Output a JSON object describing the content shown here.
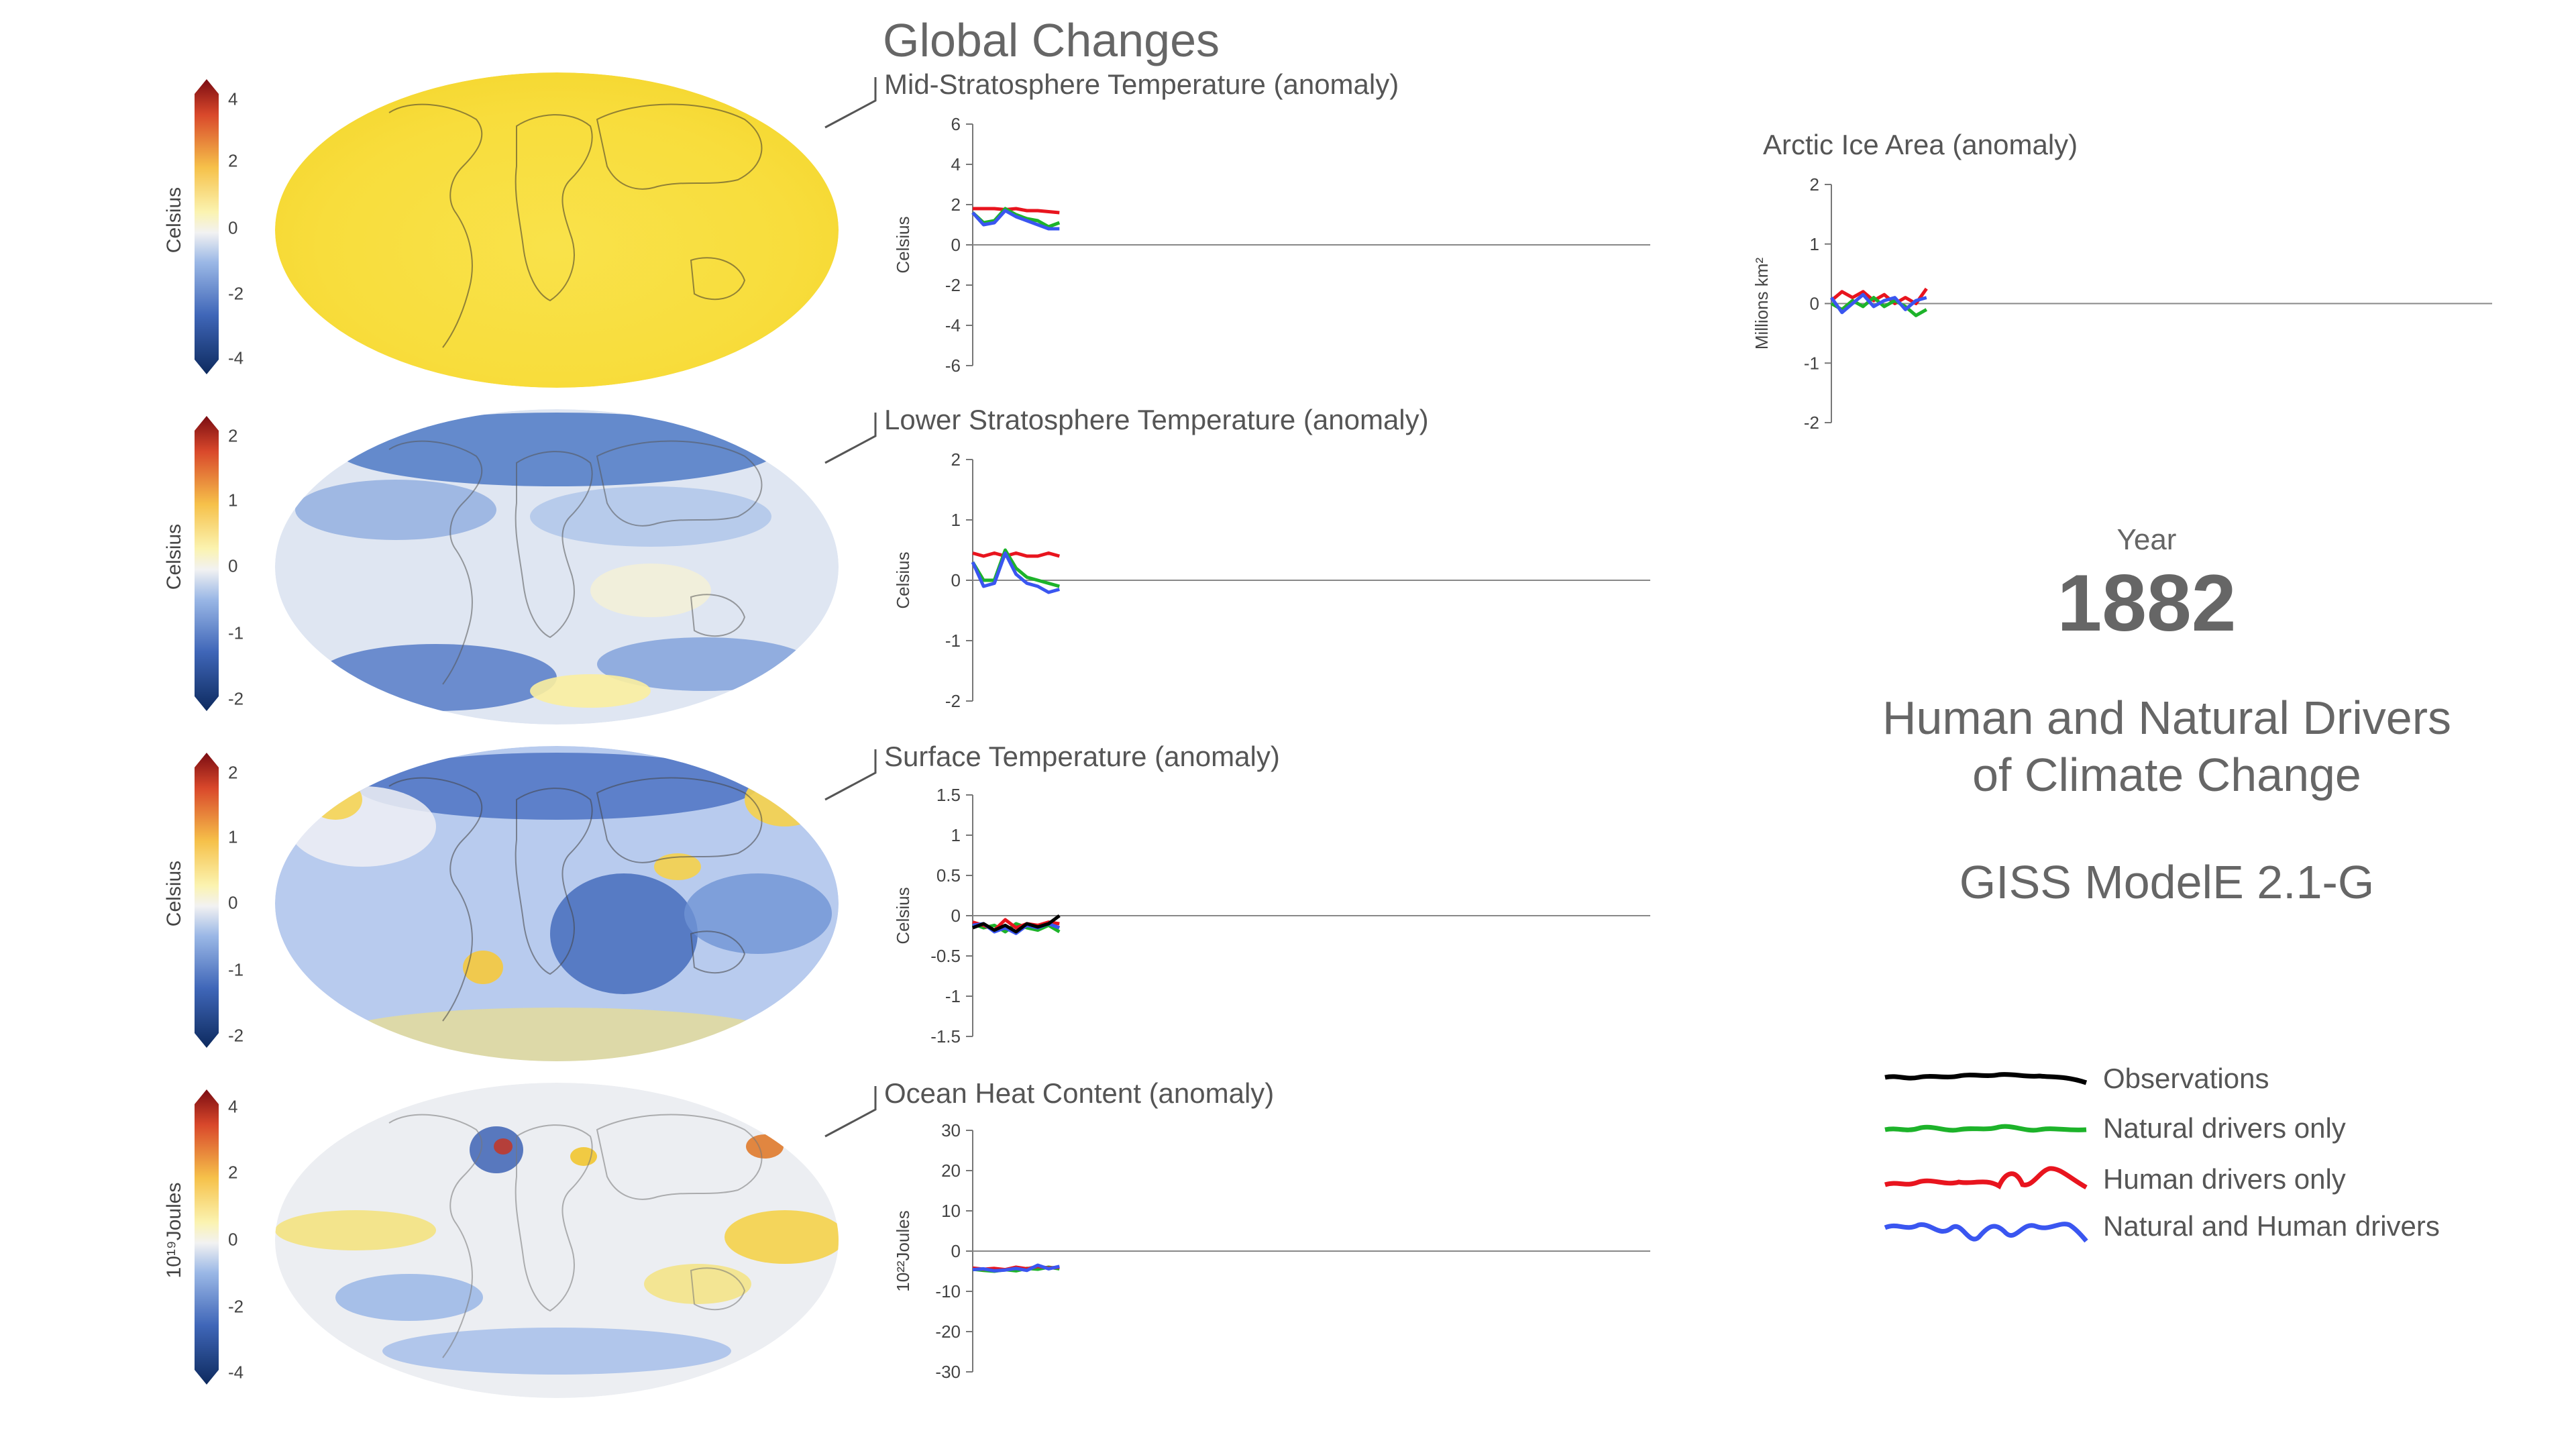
{
  "header": {
    "title": "Global Changes"
  },
  "colorbars": [
    {
      "label": "Celsius",
      "ticks": [
        "4",
        "2",
        "0",
        "-2",
        "-4"
      ]
    },
    {
      "label": "Celsius",
      "ticks": [
        "2",
        "1",
        "0",
        "-1",
        "-2"
      ]
    },
    {
      "label": "Celsius",
      "ticks": [
        "2",
        "1",
        "0",
        "-1",
        "-2"
      ]
    },
    {
      "label": "10¹⁹Joules",
      "ticks": [
        "4",
        "2",
        "0",
        "-2",
        "-4"
      ]
    }
  ],
  "maps": [
    {
      "name": "Mid-Stratosphere Temperature anomaly map",
      "base_color": "#f8dd3c"
    },
    {
      "name": "Lower Stratosphere Temperature anomaly map",
      "base_color": "#aec4ea"
    },
    {
      "name": "Surface Temperature anomaly map",
      "base_color": "#8fb0e4"
    },
    {
      "name": "Ocean Heat Content anomaly map",
      "base_color": "#eceef2"
    }
  ],
  "side": {
    "year_label": "Year",
    "year_value": "1882",
    "subtitle_line1": "Human and Natural Drivers",
    "subtitle_line2": "of Climate Change",
    "model": "GISS ModelE 2.1-G"
  },
  "legend": [
    {
      "label": "Observations",
      "color": "#000000"
    },
    {
      "label": "Natural drivers only",
      "color": "#1db32a"
    },
    {
      "label": "Human drivers only",
      "color": "#e8141e"
    },
    {
      "label": "Natural and Human drivers",
      "color": "#3a56f0"
    }
  ],
  "chart_data": [
    {
      "type": "line",
      "title": "Mid-Stratosphere Temperature (anomaly)",
      "ylabel": "Celsius",
      "ylim": [
        -6,
        6
      ],
      "yticks": [
        "6",
        "4",
        "2",
        "0",
        "-2",
        "-4",
        "-6"
      ],
      "xlim": [
        1850,
        2100
      ],
      "grid": false,
      "series": [
        {
          "name": "Human drivers only",
          "color": "#e8141e",
          "x": [
            1850,
            1854,
            1858,
            1862,
            1866,
            1870,
            1874,
            1878,
            1882
          ],
          "values": [
            1.8,
            1.8,
            1.8,
            1.75,
            1.8,
            1.7,
            1.7,
            1.65,
            1.6
          ]
        },
        {
          "name": "Natural drivers only",
          "color": "#1db32a",
          "x": [
            1850,
            1854,
            1858,
            1862,
            1866,
            1870,
            1874,
            1878,
            1882
          ],
          "values": [
            1.6,
            1.1,
            1.2,
            1.8,
            1.5,
            1.3,
            1.2,
            0.9,
            1.1
          ]
        },
        {
          "name": "Natural and Human drivers",
          "color": "#3a56f0",
          "x": [
            1850,
            1854,
            1858,
            1862,
            1866,
            1870,
            1874,
            1878,
            1882
          ],
          "values": [
            1.6,
            1.0,
            1.1,
            1.7,
            1.4,
            1.2,
            1.0,
            0.8,
            0.8
          ]
        }
      ]
    },
    {
      "type": "line",
      "title": "Lower Stratosphere Temperature (anomaly)",
      "ylabel": "Celsius",
      "ylim": [
        -2,
        2
      ],
      "yticks": [
        "2",
        "1",
        "0",
        "-1",
        "-2"
      ],
      "xlim": [
        1850,
        2100
      ],
      "grid": false,
      "series": [
        {
          "name": "Human drivers only",
          "color": "#e8141e",
          "x": [
            1850,
            1854,
            1858,
            1862,
            1866,
            1870,
            1874,
            1878,
            1882
          ],
          "values": [
            0.45,
            0.4,
            0.45,
            0.4,
            0.45,
            0.4,
            0.4,
            0.45,
            0.4
          ]
        },
        {
          "name": "Natural drivers only",
          "color": "#1db32a",
          "x": [
            1850,
            1854,
            1858,
            1862,
            1866,
            1870,
            1874,
            1878,
            1882
          ],
          "values": [
            0.3,
            0.0,
            0.0,
            0.5,
            0.2,
            0.05,
            0.0,
            -0.05,
            -0.1
          ]
        },
        {
          "name": "Natural and Human drivers",
          "color": "#3a56f0",
          "x": [
            1850,
            1854,
            1858,
            1862,
            1866,
            1870,
            1874,
            1878,
            1882
          ],
          "values": [
            0.3,
            -0.1,
            -0.05,
            0.45,
            0.1,
            -0.05,
            -0.1,
            -0.2,
            -0.15
          ]
        }
      ]
    },
    {
      "type": "line",
      "title": "Surface Temperature (anomaly)",
      "ylabel": "Celsius",
      "ylim": [
        -1.5,
        1.5
      ],
      "yticks": [
        "1.5",
        "1",
        "0.5",
        "0",
        "-0.5",
        "-1",
        "-1.5"
      ],
      "xlim": [
        1850,
        2100
      ],
      "grid": false,
      "series": [
        {
          "name": "Natural drivers only",
          "color": "#1db32a",
          "x": [
            1850,
            1854,
            1858,
            1862,
            1866,
            1870,
            1874,
            1878,
            1882
          ],
          "values": [
            -0.1,
            -0.15,
            -0.12,
            -0.2,
            -0.1,
            -0.15,
            -0.18,
            -0.12,
            -0.2
          ]
        },
        {
          "name": "Human drivers only",
          "color": "#e8141e",
          "x": [
            1850,
            1854,
            1858,
            1862,
            1866,
            1870,
            1874,
            1878,
            1882
          ],
          "values": [
            -0.08,
            -0.12,
            -0.18,
            -0.05,
            -0.15,
            -0.1,
            -0.12,
            -0.08,
            -0.1
          ]
        },
        {
          "name": "Natural and Human drivers",
          "color": "#3a56f0",
          "x": [
            1850,
            1854,
            1858,
            1862,
            1866,
            1870,
            1874,
            1878,
            1882
          ],
          "values": [
            -0.12,
            -0.1,
            -0.2,
            -0.15,
            -0.22,
            -0.12,
            -0.15,
            -0.1,
            -0.15
          ]
        },
        {
          "name": "Observations",
          "color": "#000000",
          "x": [
            1850,
            1854,
            1858,
            1862,
            1866,
            1870,
            1874,
            1878,
            1882
          ],
          "values": [
            -0.15,
            -0.1,
            -0.18,
            -0.12,
            -0.2,
            -0.1,
            -0.14,
            -0.1,
            0.0
          ]
        }
      ]
    },
    {
      "type": "line",
      "title": "Ocean Heat Content (anomaly)",
      "ylabel": "10²²Joules",
      "ylim": [
        -30,
        30
      ],
      "yticks": [
        "30",
        "20",
        "10",
        "0",
        "-10",
        "-20",
        "-30"
      ],
      "xlim": [
        1850,
        2100
      ],
      "grid": false,
      "series": [
        {
          "name": "Natural drivers only",
          "color": "#1db32a",
          "x": [
            1850,
            1854,
            1858,
            1862,
            1866,
            1870,
            1874,
            1878,
            1882
          ],
          "values": [
            -4.5,
            -4.8,
            -5.0,
            -4.6,
            -4.9,
            -4.3,
            -4.5,
            -4.0,
            -4.4
          ]
        },
        {
          "name": "Human drivers only",
          "color": "#e8141e",
          "x": [
            1850,
            1854,
            1858,
            1862,
            1866,
            1870,
            1874,
            1878,
            1882
          ],
          "values": [
            -4.2,
            -4.5,
            -4.3,
            -4.6,
            -4.0,
            -4.4,
            -3.8,
            -4.2,
            -4.0
          ]
        },
        {
          "name": "Natural and Human drivers",
          "color": "#3a56f0",
          "x": [
            1850,
            1854,
            1858,
            1862,
            1866,
            1870,
            1874,
            1878,
            1882
          ],
          "values": [
            -4.6,
            -4.4,
            -4.9,
            -4.7,
            -4.3,
            -4.8,
            -3.5,
            -4.4,
            -3.8
          ]
        }
      ]
    },
    {
      "type": "line",
      "title": "Arctic Ice Area (anomaly)",
      "ylabel": "Millions km²",
      "ylim": [
        -2,
        2
      ],
      "yticks": [
        "2",
        "1",
        "0",
        "-1",
        "-2"
      ],
      "xlim": [
        1850,
        2100
      ],
      "grid": false,
      "series": [
        {
          "name": "Human drivers only",
          "color": "#e8141e",
          "x": [
            1850,
            1854,
            1858,
            1862,
            1866,
            1870,
            1874,
            1878,
            1882,
            1886
          ],
          "values": [
            0.05,
            0.2,
            0.1,
            0.2,
            0.05,
            0.15,
            0.0,
            0.1,
            0.0,
            0.25
          ]
        },
        {
          "name": "Natural drivers only",
          "color": "#1db32a",
          "x": [
            1850,
            1854,
            1858,
            1862,
            1866,
            1870,
            1874,
            1878,
            1882,
            1886
          ],
          "values": [
            0.0,
            -0.1,
            0.05,
            -0.05,
            0.1,
            -0.05,
            0.05,
            -0.05,
            -0.2,
            -0.1
          ]
        },
        {
          "name": "Natural and Human drivers",
          "color": "#3a56f0",
          "x": [
            1850,
            1854,
            1858,
            1862,
            1866,
            1870,
            1874,
            1878,
            1882,
            1886
          ],
          "values": [
            0.1,
            -0.15,
            0.0,
            0.15,
            -0.05,
            0.05,
            0.1,
            -0.1,
            0.05,
            0.1
          ]
        }
      ]
    }
  ]
}
